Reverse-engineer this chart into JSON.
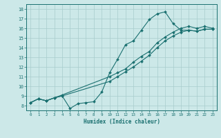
{
  "title": "",
  "xlabel": "Humidex (Indice chaleur)",
  "bg_color": "#cce8e8",
  "line_color": "#1a7070",
  "grid_color": "#a8cccc",
  "xlim": [
    -0.5,
    23.5
  ],
  "ylim": [
    7.5,
    18.5
  ],
  "xticks": [
    0,
    1,
    2,
    3,
    4,
    5,
    6,
    7,
    8,
    9,
    10,
    11,
    12,
    13,
    14,
    15,
    16,
    17,
    18,
    19,
    20,
    21,
    22,
    23
  ],
  "yticks": [
    8,
    9,
    10,
    11,
    12,
    13,
    14,
    15,
    16,
    17,
    18
  ],
  "series1_x": [
    0,
    1,
    2,
    3,
    4,
    5,
    6,
    7,
    8,
    9,
    10,
    11,
    12,
    13,
    14,
    15,
    16,
    17,
    18,
    19,
    20,
    21,
    22,
    23
  ],
  "series1_y": [
    8.3,
    8.7,
    8.5,
    8.8,
    9.0,
    7.7,
    8.2,
    8.3,
    8.4,
    9.4,
    11.4,
    12.8,
    14.3,
    14.7,
    15.8,
    16.9,
    17.5,
    17.7,
    16.5,
    15.8,
    15.8,
    15.7,
    15.9,
    15.9
  ],
  "series2_x": [
    0,
    1,
    2,
    3,
    4,
    10,
    11,
    12,
    13,
    14,
    15,
    16,
    17,
    18,
    19,
    20,
    21,
    22,
    23
  ],
  "series2_y": [
    8.3,
    8.7,
    8.5,
    8.8,
    9.1,
    11.0,
    11.4,
    11.8,
    12.5,
    13.1,
    13.6,
    14.5,
    15.1,
    15.6,
    16.0,
    16.2,
    16.0,
    16.2,
    16.0
  ],
  "series3_x": [
    0,
    1,
    2,
    3,
    4,
    10,
    11,
    12,
    13,
    14,
    15,
    16,
    17,
    18,
    19,
    20,
    21,
    22,
    23
  ],
  "series3_y": [
    8.3,
    8.7,
    8.5,
    8.8,
    9.0,
    10.5,
    11.0,
    11.5,
    12.0,
    12.6,
    13.2,
    14.0,
    14.7,
    15.2,
    15.6,
    15.8,
    15.7,
    15.9,
    15.9
  ]
}
